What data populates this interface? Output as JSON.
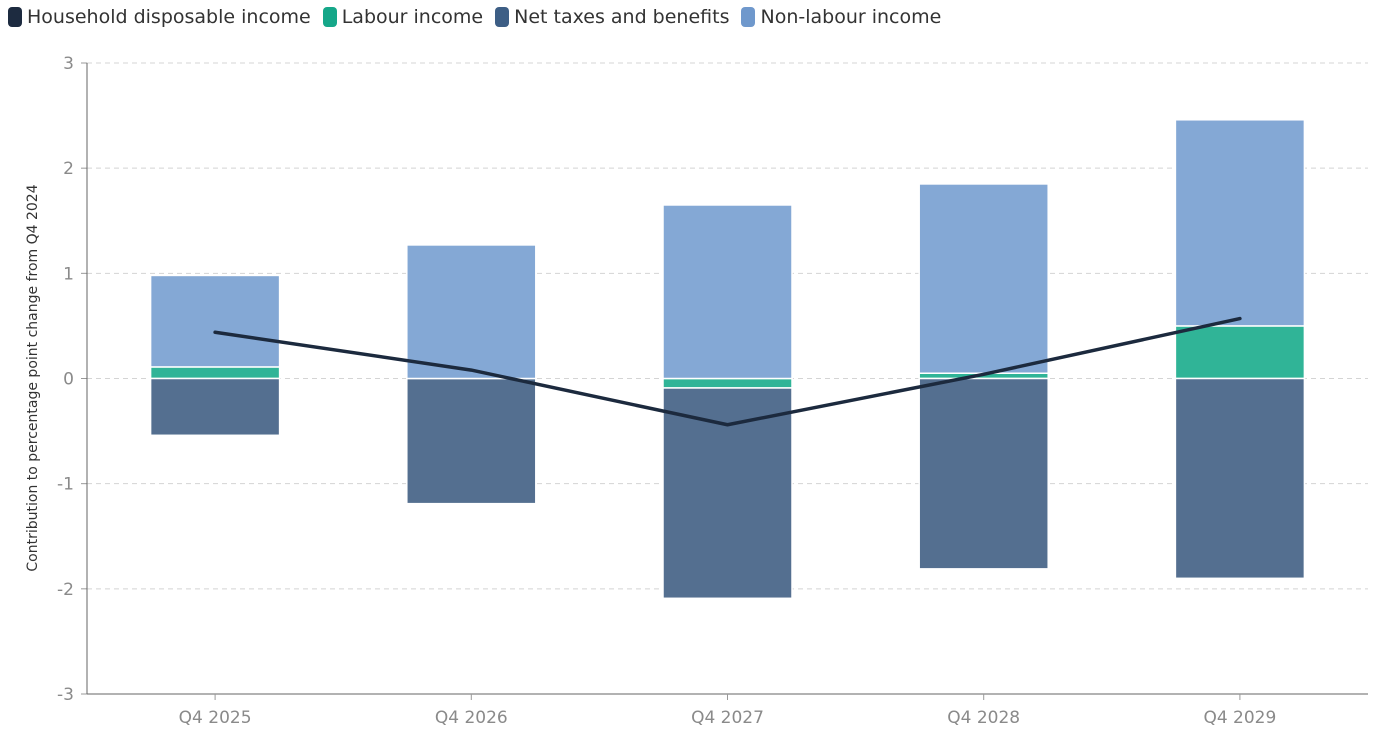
{
  "legend": {
    "items": [
      {
        "label": "Household disposable income",
        "color": "#1d2b40"
      },
      {
        "label": "Labour income",
        "color": "#15a789"
      },
      {
        "label": "Net taxes and benefits",
        "color": "#3d5e85"
      },
      {
        "label": "Non-labour income",
        "color": "#6f98cc"
      }
    ]
  },
  "chart_data": {
    "type": "bar",
    "stacked": true,
    "categories": [
      "Q4 2025",
      "Q4 2026",
      "Q4 2027",
      "Q4 2028",
      "Q4 2029"
    ],
    "series": [
      {
        "name": "Labour income",
        "color": "#30b497",
        "values": [
          0.11,
          0.0,
          -0.09,
          0.05,
          0.5
        ]
      },
      {
        "name": "Net taxes and benefits",
        "color": "#546f90",
        "values": [
          -0.54,
          -1.19,
          -2.0,
          -1.81,
          -1.9
        ]
      },
      {
        "name": "Non-labour income",
        "color": "#84a8d5",
        "values": [
          0.87,
          1.27,
          1.65,
          1.8,
          1.96
        ]
      }
    ],
    "line": {
      "name": "Household disposable income",
      "color": "#1c2a3e",
      "values": [
        0.44,
        0.08,
        -0.44,
        0.04,
        0.57
      ]
    },
    "ylabel": "Contribution to percentage point change from Q4 2024",
    "xlabel": "",
    "ylim": [
      -3,
      3
    ],
    "yticks": [
      3,
      2,
      1,
      0,
      -1,
      -2,
      -3
    ],
    "ytick_labels": [
      "3",
      "2",
      "1",
      "0",
      "-1",
      "-2",
      "-3"
    ],
    "grid": true
  }
}
